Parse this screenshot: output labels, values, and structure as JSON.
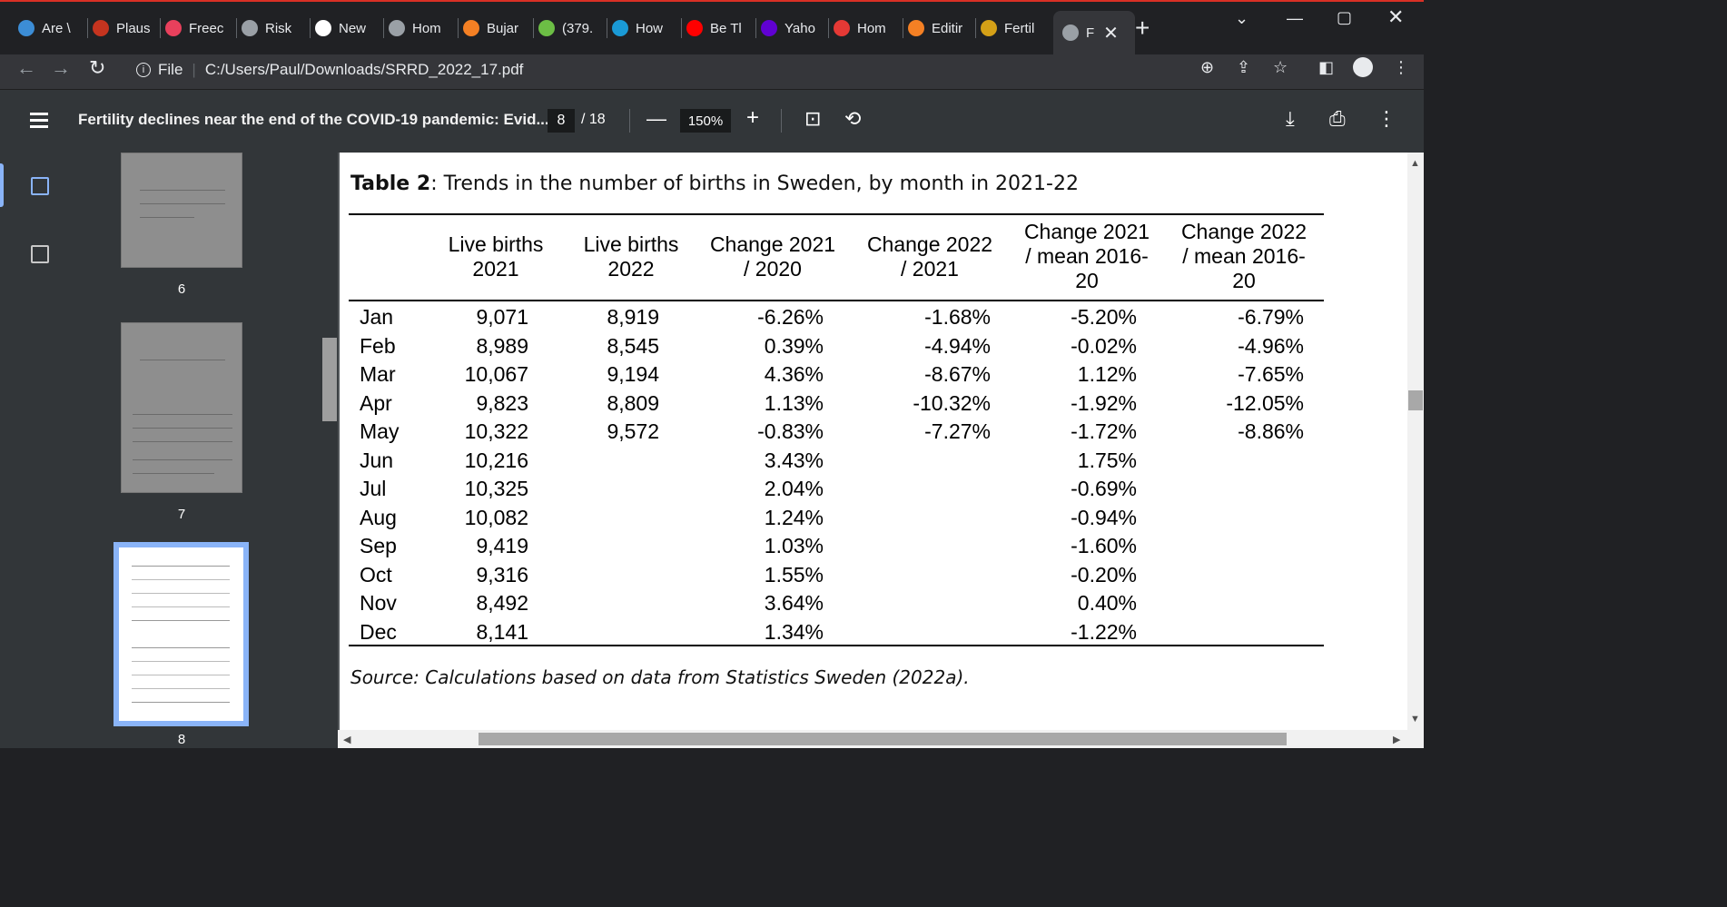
{
  "tabs": [
    {
      "label": "Are \\",
      "icon": "globe-icon",
      "color": "#3c8dd6"
    },
    {
      "label": "Plaus",
      "icon": "bi-logo-icon",
      "color": "#c5341f"
    },
    {
      "label": "Freec",
      "icon": "pinwheel-icon",
      "color": "#e8405c"
    },
    {
      "label": "Risk",
      "icon": "globe-icon",
      "color": "#9aa0a6"
    },
    {
      "label": "New",
      "icon": "quill-icon",
      "color": "#ffffff"
    },
    {
      "label": "Hom",
      "icon": "globe-icon",
      "color": "#9aa0a6"
    },
    {
      "label": "Bujar",
      "icon": "stack-icon",
      "color": "#f48024"
    },
    {
      "label": "(379.",
      "icon": "g-logo-icon",
      "color": "#6cbe45"
    },
    {
      "label": "How",
      "icon": "stat-logo-icon",
      "color": "#1a9ad6"
    },
    {
      "label": "Be Tl",
      "icon": "youtube-icon",
      "color": "#ff0000"
    },
    {
      "label": "Yaho",
      "icon": "yahoo-icon",
      "color": "#6001d2"
    },
    {
      "label": "Hom",
      "icon": "pin-icon",
      "color": "#e53935"
    },
    {
      "label": "Editir",
      "icon": "stack-icon",
      "color": "#f48024"
    },
    {
      "label": "Fertil",
      "icon": "sun-icon",
      "color": "#d4a017"
    },
    {
      "label": "F",
      "icon": "globe-icon",
      "color": "#9aa0a6"
    }
  ],
  "omnibox": {
    "scheme": "File",
    "url": "C:/Users/Paul/Downloads/SRRD_2022_17.pdf"
  },
  "pdf": {
    "title": "Fertility declines near the end of the COVID-19 pandemic: Evid...",
    "current_page": "8",
    "total_pages": "/ 18",
    "zoom": "150%"
  },
  "thumbnails": [
    {
      "page": "6"
    },
    {
      "page": "7"
    },
    {
      "page": "8"
    }
  ],
  "table": {
    "title_bold": "Table 2",
    "title_rest": ": Trends in the number of births in Sweden, by month in 2021-22",
    "headers": [
      [
        "Live births",
        "2021"
      ],
      [
        "Live births",
        "2022"
      ],
      [
        "Change 2021",
        "/ 2020"
      ],
      [
        "Change 2022",
        "/ 2021"
      ],
      [
        "Change 2021",
        "/ mean 2016-",
        "20"
      ],
      [
        "Change 2022",
        "/ mean 2016-",
        "20"
      ]
    ],
    "rows": [
      [
        "Jan",
        "9,071",
        "8,919",
        "-6.26%",
        "-1.68%",
        "-5.20%",
        "-6.79%"
      ],
      [
        "Feb",
        "8,989",
        "8,545",
        "0.39%",
        "-4.94%",
        "-0.02%",
        "-4.96%"
      ],
      [
        "Mar",
        "10,067",
        "9,194",
        "4.36%",
        "-8.67%",
        "1.12%",
        "-7.65%"
      ],
      [
        "Apr",
        "9,823",
        "8,809",
        "1.13%",
        "-10.32%",
        "-1.92%",
        "-12.05%"
      ],
      [
        "May",
        "10,322",
        "9,572",
        "-0.83%",
        "-7.27%",
        "-1.72%",
        "-8.86%"
      ],
      [
        "Jun",
        "10,216",
        "",
        "3.43%",
        "",
        "1.75%",
        ""
      ],
      [
        "Jul",
        "10,325",
        "",
        "2.04%",
        "",
        "-0.69%",
        ""
      ],
      [
        "Aug",
        "10,082",
        "",
        "1.24%",
        "",
        "-0.94%",
        ""
      ],
      [
        "Sep",
        "9,419",
        "",
        "1.03%",
        "",
        "-1.60%",
        ""
      ],
      [
        "Oct",
        "9,316",
        "",
        "1.55%",
        "",
        "-0.20%",
        ""
      ],
      [
        "Nov",
        "8,492",
        "",
        "3.64%",
        "",
        "0.40%",
        ""
      ],
      [
        "Dec",
        "8,141",
        "",
        "1.34%",
        "",
        "-1.22%",
        ""
      ]
    ],
    "source": "Source: Calculations based on data from Statistics Sweden (2022a)."
  }
}
